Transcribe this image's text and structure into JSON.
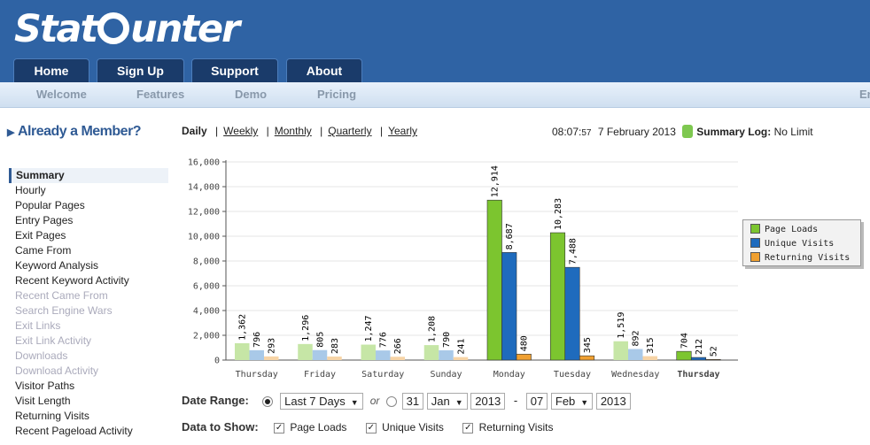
{
  "brand": {
    "logo_left": "Stat",
    "logo_right": "unter"
  },
  "main_tabs": [
    {
      "label": "Home"
    },
    {
      "label": "Sign Up"
    },
    {
      "label": "Support"
    },
    {
      "label": "About"
    }
  ],
  "sub_nav": [
    {
      "label": "Welcome"
    },
    {
      "label": "Features"
    },
    {
      "label": "Demo"
    },
    {
      "label": "Pricing"
    }
  ],
  "sub_nav_cut": "En",
  "member_heading": "Already a Member?",
  "sidebar": [
    {
      "label": "Summary",
      "state": "active"
    },
    {
      "label": "Hourly",
      "state": "enabled"
    },
    {
      "label": "Popular Pages",
      "state": "enabled"
    },
    {
      "label": "Entry Pages",
      "state": "enabled"
    },
    {
      "label": "Exit Pages",
      "state": "enabled"
    },
    {
      "label": "Came From",
      "state": "enabled"
    },
    {
      "label": "Keyword Analysis",
      "state": "enabled"
    },
    {
      "label": "Recent Keyword Activity",
      "state": "enabled"
    },
    {
      "label": "Recent Came From",
      "state": "disabled"
    },
    {
      "label": "Search Engine Wars",
      "state": "disabled"
    },
    {
      "label": "Exit Links",
      "state": "disabled"
    },
    {
      "label": "Exit Link Activity",
      "state": "disabled"
    },
    {
      "label": "Downloads",
      "state": "disabled"
    },
    {
      "label": "Download Activity",
      "state": "disabled"
    },
    {
      "label": "Visitor Paths",
      "state": "enabled"
    },
    {
      "label": "Visit Length",
      "state": "enabled"
    },
    {
      "label": "Returning Visits",
      "state": "enabled"
    },
    {
      "label": "Recent Pageload Activity",
      "state": "enabled"
    }
  ],
  "periods": {
    "current": "Daily",
    "links": [
      "Weekly",
      "Monthly",
      "Quarterly",
      "Yearly"
    ]
  },
  "status": {
    "time": "08:07:",
    "seconds": "57",
    "date": "7 February 2013",
    "log_label": "Summary Log:",
    "log_value": "No Limit"
  },
  "legend": [
    {
      "label": "Page Loads",
      "color": "#7cc52f"
    },
    {
      "label": "Unique Visits",
      "color": "#1f6bbd"
    },
    {
      "label": "Returning Visits",
      "color": "#f0a030"
    }
  ],
  "date_range": {
    "label": "Date Range:",
    "preset": "Last 7 Days",
    "or": "or",
    "from_day": "31",
    "from_month": "Jan",
    "from_year": "2013",
    "dash": "-",
    "to_day": "07",
    "to_month": "Feb",
    "to_year": "2013"
  },
  "data_to_show": {
    "label": "Data to Show:",
    "options": [
      "Page Loads",
      "Unique Visits",
      "Returning Visits"
    ]
  },
  "chart_data": {
    "type": "bar",
    "categories": [
      "Thursday",
      "Friday",
      "Saturday",
      "Sunday",
      "Monday",
      "Tuesday",
      "Wednesday",
      "Thursday"
    ],
    "series": [
      {
        "name": "Page Loads",
        "values": [
          1362,
          1296,
          1247,
          1208,
          12914,
          10283,
          1519,
          704
        ],
        "labels": [
          "1,362",
          "1,296",
          "1,247",
          "1,208",
          "12,914",
          "10,283",
          "1,519",
          "704"
        ]
      },
      {
        "name": "Unique Visits",
        "values": [
          796,
          805,
          776,
          790,
          8687,
          7488,
          892,
          212
        ],
        "labels": [
          "796",
          "805",
          "776",
          "790",
          "8,687",
          "7,488",
          "892",
          "212"
        ]
      },
      {
        "name": "Returning Visits",
        "values": [
          293,
          283,
          266,
          241,
          480,
          345,
          315,
          52
        ],
        "labels": [
          "293",
          "283",
          "266",
          "241",
          "480",
          "345",
          "315",
          "52"
        ]
      }
    ],
    "yticks": [
      "0",
      "2,000",
      "4,000",
      "6,000",
      "8,000",
      "10,000",
      "12,000",
      "14,000",
      "16,000"
    ],
    "ylim": [
      0,
      16000
    ],
    "highlight_last": true,
    "colors": {
      "page_full": "#7cc52f",
      "page_light": "#c6e6a6",
      "unique_full": "#1f6bbd",
      "unique_light": "#a9c9e8",
      "return_full": "#f0a030",
      "return_light": "#f7d4a6"
    }
  }
}
